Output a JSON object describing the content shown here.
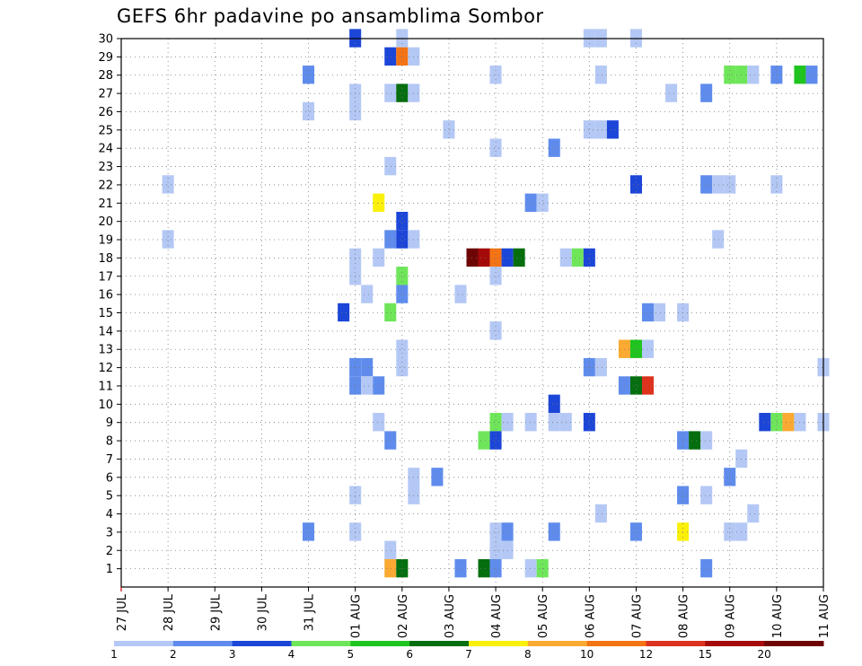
{
  "chart_data": {
    "type": "heatmap",
    "title": "GEFS 6hr padavine po ansamblima Sombor",
    "xlabel": "",
    "ylabel": "",
    "x_tick_labels": [
      "27 JUL",
      "28 JUL",
      "29 JUL",
      "30 JUL",
      "31 JUL",
      "01 AUG",
      "02 AUG",
      "03 AUG",
      "04 AUG",
      "05 AUG",
      "06 AUG",
      "07 AUG",
      "08 AUG",
      "09 AUG",
      "10 AUG",
      "11 AUG"
    ],
    "x_range_days": [
      0,
      15
    ],
    "y_tick_labels": [
      "1",
      "2",
      "3",
      "4",
      "5",
      "6",
      "7",
      "8",
      "9",
      "10",
      "11",
      "12",
      "13",
      "14",
      "15",
      "16",
      "17",
      "18",
      "19",
      "20",
      "21",
      "22",
      "23",
      "24",
      "25",
      "26",
      "27",
      "28",
      "29",
      "30"
    ],
    "y_range": [
      0,
      30
    ],
    "grid": true,
    "colorbar": {
      "labels": [
        "1",
        "2",
        "3",
        "4",
        "5",
        "6",
        "7",
        "8",
        "10",
        "12",
        "15",
        "20"
      ],
      "colors": [
        "#b4c8f5",
        "#5f8cec",
        "#1c46d8",
        "#6fe65a",
        "#1fc41f",
        "#056e0f",
        "#faf00a",
        "#faaa32",
        "#f47314",
        "#dc321e",
        "#a50a0a",
        "#6e0505"
      ]
    },
    "cells": [
      {
        "member": 30,
        "day": 5.0,
        "cls": 3
      },
      {
        "member": 30,
        "day": 6.0,
        "cls": 1
      },
      {
        "member": 30,
        "day": 10.0,
        "cls": 1
      },
      {
        "member": 30,
        "day": 10.25,
        "cls": 1
      },
      {
        "member": 30,
        "day": 11.0,
        "cls": 1
      },
      {
        "member": 29,
        "day": 5.75,
        "cls": 3
      },
      {
        "member": 29,
        "day": 6.0,
        "cls": 9
      },
      {
        "member": 29,
        "day": 6.25,
        "cls": 1
      },
      {
        "member": 28,
        "day": 4.0,
        "cls": 2
      },
      {
        "member": 28,
        "day": 8.0,
        "cls": 1
      },
      {
        "member": 28,
        "day": 10.25,
        "cls": 1
      },
      {
        "member": 28,
        "day": 13.0,
        "cls": 4
      },
      {
        "member": 28,
        "day": 13.25,
        "cls": 4
      },
      {
        "member": 28,
        "day": 13.5,
        "cls": 1
      },
      {
        "member": 28,
        "day": 14.0,
        "cls": 2
      },
      {
        "member": 28,
        "day": 14.5,
        "cls": 5
      },
      {
        "member": 28,
        "day": 14.75,
        "cls": 2
      },
      {
        "member": 27,
        "day": 5.0,
        "cls": 1
      },
      {
        "member": 27,
        "day": 5.75,
        "cls": 1
      },
      {
        "member": 27,
        "day": 6.0,
        "cls": 6
      },
      {
        "member": 27,
        "day": 6.25,
        "cls": 1
      },
      {
        "member": 27,
        "day": 11.75,
        "cls": 1
      },
      {
        "member": 27,
        "day": 12.5,
        "cls": 2
      },
      {
        "member": 26,
        "day": 4.0,
        "cls": 1
      },
      {
        "member": 26,
        "day": 5.0,
        "cls": 1
      },
      {
        "member": 25,
        "day": 7.0,
        "cls": 1
      },
      {
        "member": 25,
        "day": 10.0,
        "cls": 1
      },
      {
        "member": 25,
        "day": 10.25,
        "cls": 1
      },
      {
        "member": 25,
        "day": 10.5,
        "cls": 3
      },
      {
        "member": 24,
        "day": 8.0,
        "cls": 1
      },
      {
        "member": 24,
        "day": 9.25,
        "cls": 2
      },
      {
        "member": 23,
        "day": 5.75,
        "cls": 1
      },
      {
        "member": 22,
        "day": 1.0,
        "cls": 1
      },
      {
        "member": 22,
        "day": 11.0,
        "cls": 3
      },
      {
        "member": 22,
        "day": 12.5,
        "cls": 2
      },
      {
        "member": 22,
        "day": 12.75,
        "cls": 1
      },
      {
        "member": 22,
        "day": 13.0,
        "cls": 1
      },
      {
        "member": 22,
        "day": 14.0,
        "cls": 1
      },
      {
        "member": 21,
        "day": 5.5,
        "cls": 7
      },
      {
        "member": 21,
        "day": 8.75,
        "cls": 2
      },
      {
        "member": 21,
        "day": 9.0,
        "cls": 1
      },
      {
        "member": 20,
        "day": 6.0,
        "cls": 3
      },
      {
        "member": 19,
        "day": 1.0,
        "cls": 1
      },
      {
        "member": 19,
        "day": 5.75,
        "cls": 2
      },
      {
        "member": 19,
        "day": 6.0,
        "cls": 3
      },
      {
        "member": 19,
        "day": 6.25,
        "cls": 1
      },
      {
        "member": 19,
        "day": 12.75,
        "cls": 1
      },
      {
        "member": 18,
        "day": 5.0,
        "cls": 1
      },
      {
        "member": 18,
        "day": 5.5,
        "cls": 1
      },
      {
        "member": 18,
        "day": 7.5,
        "cls": 12
      },
      {
        "member": 18,
        "day": 7.75,
        "cls": 11
      },
      {
        "member": 18,
        "day": 8.0,
        "cls": 9
      },
      {
        "member": 18,
        "day": 8.25,
        "cls": 3
      },
      {
        "member": 18,
        "day": 8.5,
        "cls": 6
      },
      {
        "member": 18,
        "day": 9.5,
        "cls": 1
      },
      {
        "member": 18,
        "day": 9.75,
        "cls": 4
      },
      {
        "member": 18,
        "day": 10.0,
        "cls": 3
      },
      {
        "member": 17,
        "day": 5.0,
        "cls": 1
      },
      {
        "member": 17,
        "day": 6.0,
        "cls": 4
      },
      {
        "member": 17,
        "day": 8.0,
        "cls": 1
      },
      {
        "member": 16,
        "day": 5.25,
        "cls": 1
      },
      {
        "member": 16,
        "day": 6.0,
        "cls": 2
      },
      {
        "member": 16,
        "day": 7.25,
        "cls": 1
      },
      {
        "member": 15,
        "day": 4.75,
        "cls": 3
      },
      {
        "member": 15,
        "day": 5.75,
        "cls": 4
      },
      {
        "member": 15,
        "day": 11.25,
        "cls": 2
      },
      {
        "member": 15,
        "day": 11.5,
        "cls": 1
      },
      {
        "member": 15,
        "day": 12.0,
        "cls": 1
      },
      {
        "member": 14,
        "day": 8.0,
        "cls": 1
      },
      {
        "member": 13,
        "day": 6.0,
        "cls": 1
      },
      {
        "member": 13,
        "day": 10.75,
        "cls": 8
      },
      {
        "member": 13,
        "day": 11.0,
        "cls": 5
      },
      {
        "member": 13,
        "day": 11.25,
        "cls": 1
      },
      {
        "member": 12,
        "day": 5.0,
        "cls": 2
      },
      {
        "member": 12,
        "day": 5.25,
        "cls": 2
      },
      {
        "member": 12,
        "day": 6.0,
        "cls": 1
      },
      {
        "member": 12,
        "day": 10.0,
        "cls": 2
      },
      {
        "member": 12,
        "day": 10.25,
        "cls": 1
      },
      {
        "member": 12,
        "day": 15.0,
        "cls": 1
      },
      {
        "member": 11,
        "day": 5.0,
        "cls": 2
      },
      {
        "member": 11,
        "day": 5.25,
        "cls": 1
      },
      {
        "member": 11,
        "day": 5.5,
        "cls": 2
      },
      {
        "member": 11,
        "day": 10.75,
        "cls": 2
      },
      {
        "member": 11,
        "day": 11.0,
        "cls": 6
      },
      {
        "member": 11,
        "day": 11.25,
        "cls": 10
      },
      {
        "member": 10,
        "day": 9.25,
        "cls": 3
      },
      {
        "member": 9,
        "day": 5.5,
        "cls": 1
      },
      {
        "member": 9,
        "day": 8.0,
        "cls": 4
      },
      {
        "member": 9,
        "day": 8.25,
        "cls": 1
      },
      {
        "member": 9,
        "day": 8.75,
        "cls": 1
      },
      {
        "member": 9,
        "day": 9.25,
        "cls": 1
      },
      {
        "member": 9,
        "day": 9.5,
        "cls": 1
      },
      {
        "member": 9,
        "day": 10.0,
        "cls": 3
      },
      {
        "member": 9,
        "day": 13.75,
        "cls": 3
      },
      {
        "member": 9,
        "day": 14.0,
        "cls": 4
      },
      {
        "member": 9,
        "day": 14.25,
        "cls": 8
      },
      {
        "member": 9,
        "day": 14.5,
        "cls": 1
      },
      {
        "member": 9,
        "day": 15.0,
        "cls": 1
      },
      {
        "member": 8,
        "day": 5.75,
        "cls": 2
      },
      {
        "member": 8,
        "day": 7.75,
        "cls": 4
      },
      {
        "member": 8,
        "day": 8.0,
        "cls": 3
      },
      {
        "member": 8,
        "day": 12.0,
        "cls": 2
      },
      {
        "member": 8,
        "day": 12.25,
        "cls": 6
      },
      {
        "member": 8,
        "day": 12.5,
        "cls": 1
      },
      {
        "member": 7,
        "day": 13.25,
        "cls": 1
      },
      {
        "member": 6,
        "day": 6.25,
        "cls": 1
      },
      {
        "member": 6,
        "day": 6.75,
        "cls": 2
      },
      {
        "member": 6,
        "day": 13.0,
        "cls": 2
      },
      {
        "member": 5,
        "day": 5.0,
        "cls": 1
      },
      {
        "member": 5,
        "day": 6.25,
        "cls": 1
      },
      {
        "member": 5,
        "day": 12.0,
        "cls": 2
      },
      {
        "member": 5,
        "day": 12.5,
        "cls": 1
      },
      {
        "member": 4,
        "day": 10.25,
        "cls": 1
      },
      {
        "member": 4,
        "day": 13.5,
        "cls": 1
      },
      {
        "member": 3,
        "day": 4.0,
        "cls": 2
      },
      {
        "member": 3,
        "day": 5.0,
        "cls": 1
      },
      {
        "member": 3,
        "day": 8.0,
        "cls": 1
      },
      {
        "member": 3,
        "day": 8.25,
        "cls": 2
      },
      {
        "member": 3,
        "day": 9.25,
        "cls": 2
      },
      {
        "member": 3,
        "day": 11.0,
        "cls": 2
      },
      {
        "member": 3,
        "day": 12.0,
        "cls": 7
      },
      {
        "member": 3,
        "day": 13.0,
        "cls": 1
      },
      {
        "member": 3,
        "day": 13.25,
        "cls": 1
      },
      {
        "member": 2,
        "day": 5.75,
        "cls": 1
      },
      {
        "member": 2,
        "day": 8.0,
        "cls": 1
      },
      {
        "member": 2,
        "day": 8.25,
        "cls": 1
      },
      {
        "member": 1,
        "day": 5.75,
        "cls": 8
      },
      {
        "member": 1,
        "day": 6.0,
        "cls": 6
      },
      {
        "member": 1,
        "day": 7.25,
        "cls": 2
      },
      {
        "member": 1,
        "day": 7.75,
        "cls": 6
      },
      {
        "member": 1,
        "day": 8.0,
        "cls": 2
      },
      {
        "member": 1,
        "day": 8.75,
        "cls": 1
      },
      {
        "member": 1,
        "day": 9.0,
        "cls": 4
      },
      {
        "member": 1,
        "day": 12.5,
        "cls": 2
      }
    ]
  }
}
